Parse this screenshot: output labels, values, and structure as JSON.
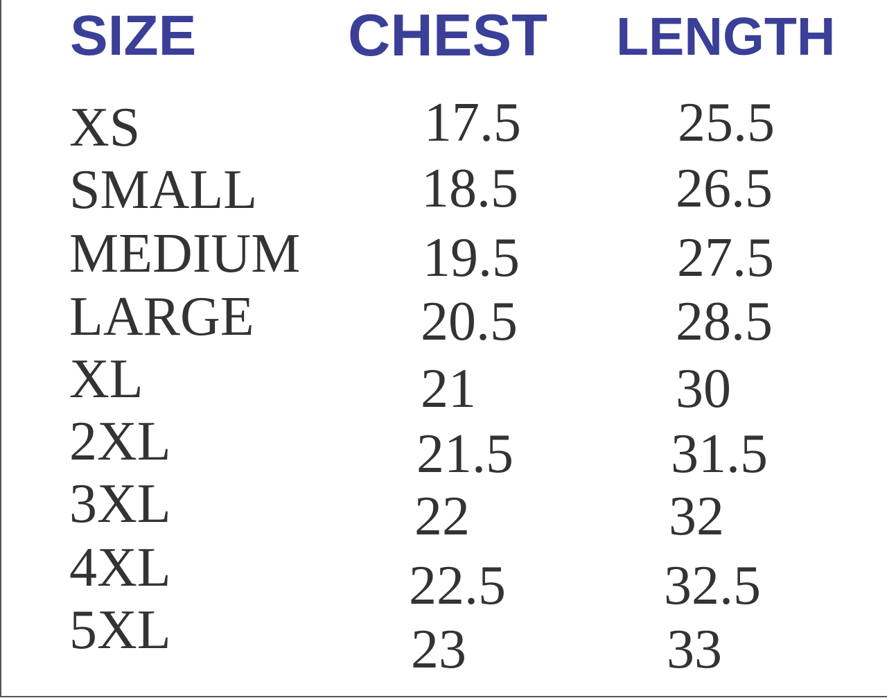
{
  "headers": {
    "size": "SIZE",
    "chest": "CHEST",
    "length": "LENGTH"
  },
  "header_color": "#3a3f98",
  "rows": [
    {
      "size": "XS",
      "chest": "17.5",
      "length": "25.5"
    },
    {
      "size": "SMALL",
      "chest": "18.5",
      "length": "26.5"
    },
    {
      "size": "MEDIUM",
      "chest": "19.5",
      "length": "27.5"
    },
    {
      "size": "LARGE",
      "chest": "20.5",
      "length": "28.5"
    },
    {
      "size": "XL",
      "chest": "21",
      "length": "30"
    },
    {
      "size": "2XL",
      "chest": "21.5",
      "length": "31.5"
    },
    {
      "size": "3XL",
      "chest": "22",
      "length": "32"
    },
    {
      "size": "4XL",
      "chest": "22.5",
      "length": "32.5"
    },
    {
      "size": "5XL",
      "chest": "23",
      "length": "33"
    }
  ]
}
